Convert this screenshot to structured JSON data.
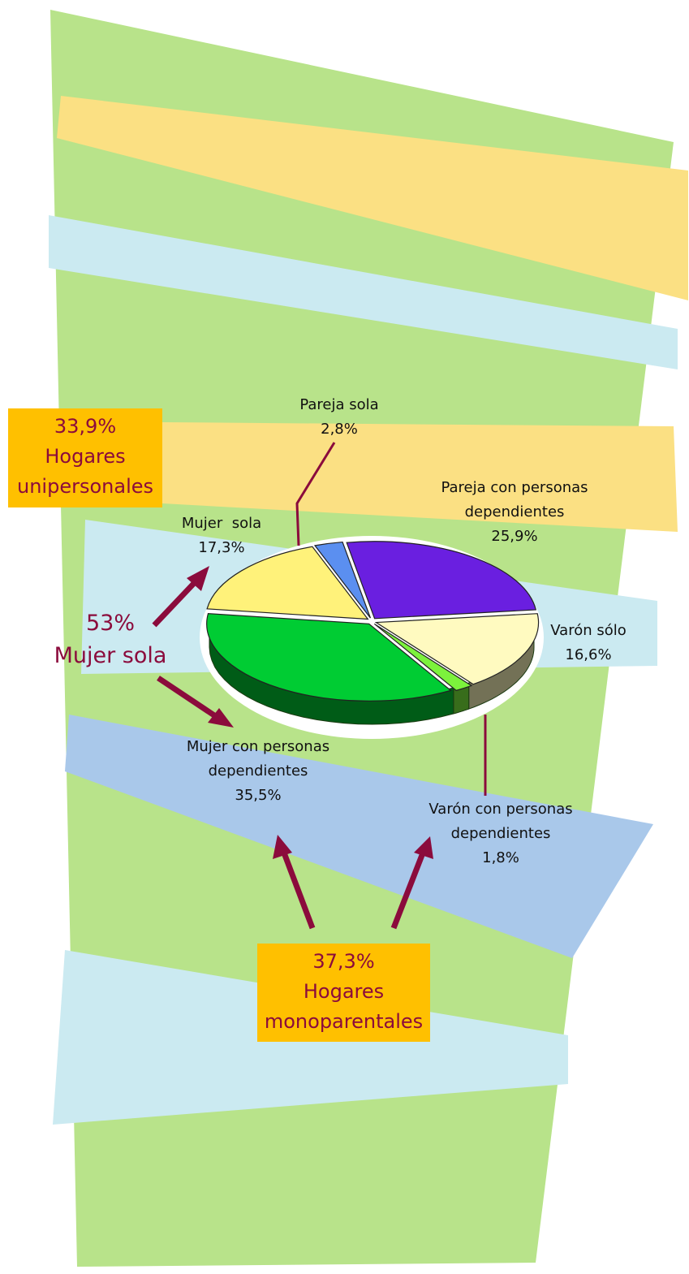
{
  "chart_data": {
    "type": "pie",
    "categories": [
      "Pareja sola",
      "Pareja con personas dependientes",
      "Varón sólo",
      "Varón con personas dependientes",
      "Mujer con personas dependientes",
      "Mujer  sola"
    ],
    "values": [
      2.8,
      25.9,
      16.6,
      1.8,
      35.5,
      17.3
    ],
    "value_labels": [
      "2,8%",
      "25,9%",
      "16,6%",
      "1,8%",
      "35,5%",
      "17,3%"
    ],
    "colors": [
      "#5b8ff0",
      "#6a1fe0",
      "#fffac0",
      "#7cf23c",
      "#00cc33",
      "#fff27a"
    ],
    "annotations": [
      {
        "label": "33,9%",
        "text": "Hogares unipersonales"
      },
      {
        "label": "53%",
        "text": "Mujer sola"
      },
      {
        "label": "37,3%",
        "text": "Hogares monoparentales"
      }
    ]
  }
}
